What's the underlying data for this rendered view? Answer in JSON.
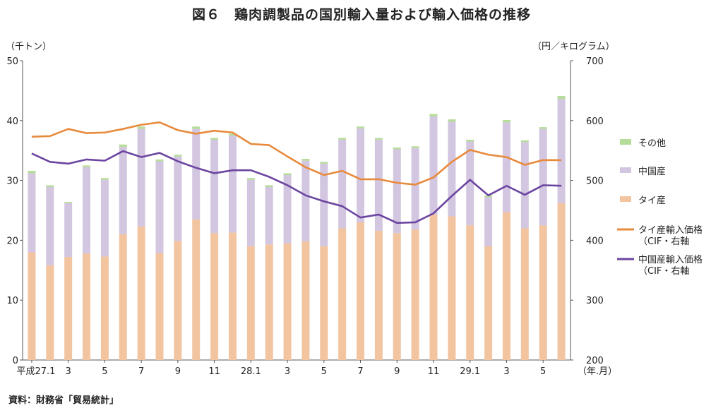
{
  "title": "図６　鶏肉調製品の国別輸入量および輸入価格の推移",
  "unit_left": "（千トン）",
  "unit_right": "（円／キログラム）",
  "source": "資料：財務省「貿易統計」",
  "colors": {
    "thai": "#f2c4a0",
    "china": "#d3c6e0",
    "other": "#b6dc9a",
    "thai_price": "#e88a3c",
    "china_price": "#6b45a0",
    "axis": "#555555"
  },
  "chart_data": {
    "type": "bar",
    "stacked": true,
    "categories": [
      "平成27.1",
      "2",
      "3",
      "4",
      "5",
      "6",
      "7",
      "8",
      "9",
      "10",
      "11",
      "12",
      "28.1",
      "2",
      "3",
      "4",
      "5",
      "6",
      "7",
      "8",
      "9",
      "10",
      "11",
      "12",
      "29.1",
      "2",
      "3",
      "4",
      "5",
      "6"
    ],
    "category_labels": [
      "平成27.1",
      "",
      "3",
      "",
      "5",
      "",
      "7",
      "",
      "9",
      "",
      "11",
      "",
      "28.1",
      "",
      "3",
      "",
      "5",
      "",
      "7",
      "",
      "9",
      "",
      "11",
      "",
      "29.1",
      "",
      "3",
      "",
      "5",
      ""
    ],
    "x_axis_unit": "（年.月）",
    "y_left": {
      "ylim": [
        0,
        50
      ],
      "ticks": [
        "0",
        "10",
        "20",
        "30",
        "40",
        "50"
      ]
    },
    "y_right": {
      "ylim": [
        200,
        700
      ],
      "ticks": [
        "200",
        "300",
        "400",
        "500",
        "600",
        "700"
      ]
    },
    "series": [
      {
        "name": "タイ産",
        "kind": "bar",
        "axis": "left",
        "values": [
          18.0,
          15.8,
          17.2,
          17.8,
          17.3,
          21.0,
          22.3,
          17.9,
          19.9,
          23.5,
          21.2,
          21.3,
          19.0,
          19.3,
          19.5,
          19.8,
          19.0,
          22.0,
          23.0,
          21.6,
          21.2,
          21.8,
          24.3,
          24.0,
          22.5,
          19.0,
          24.7,
          22.0,
          22.5,
          26.2
        ]
      },
      {
        "name": "中国産",
        "kind": "bar",
        "axis": "left",
        "values": [
          13.2,
          13.1,
          9.0,
          14.4,
          12.8,
          14.6,
          16.3,
          15.3,
          14.1,
          15.1,
          15.6,
          16.2,
          11.1,
          9.6,
          11.4,
          13.5,
          13.8,
          14.8,
          15.7,
          15.2,
          14.0,
          13.6,
          16.4,
          15.8,
          14.0,
          8.2,
          15.0,
          14.4,
          16.1,
          17.4
        ]
      },
      {
        "name": "その他",
        "kind": "bar",
        "axis": "left",
        "values": [
          0.4,
          0.3,
          0.2,
          0.3,
          0.3,
          0.4,
          0.4,
          0.3,
          0.3,
          0.4,
          0.3,
          0.3,
          0.3,
          0.3,
          0.3,
          0.3,
          0.3,
          0.3,
          0.3,
          0.3,
          0.3,
          0.3,
          0.4,
          0.4,
          0.3,
          0.3,
          0.4,
          0.3,
          0.3,
          0.5
        ]
      },
      {
        "name": "タイ産輸入価格（CIF・右軸）",
        "kind": "line",
        "axis": "right",
        "values": [
          573,
          574,
          586,
          579,
          580,
          586,
          593,
          597,
          584,
          578,
          583,
          580,
          561,
          559,
          540,
          522,
          509,
          516,
          502,
          502,
          496,
          493,
          505,
          531,
          551,
          543,
          539,
          526,
          534,
          534
        ]
      },
      {
        "name": "中国産輸入価格（CIF・右軸）",
        "kind": "line",
        "axis": "right",
        "values": [
          545,
          531,
          528,
          535,
          533,
          549,
          539,
          546,
          532,
          521,
          512,
          517,
          517,
          506,
          492,
          475,
          465,
          457,
          438,
          443,
          429,
          430,
          445,
          474,
          501,
          475,
          491,
          476,
          492,
          491
        ]
      }
    ],
    "legend": {
      "position": "right",
      "items": [
        {
          "label": "その他",
          "type": "swatch",
          "color_key": "other"
        },
        {
          "label": "中国産",
          "type": "swatch",
          "color_key": "china"
        },
        {
          "label": "タイ産",
          "type": "swatch",
          "color_key": "thai"
        },
        {
          "label": "タイ産輸入価格",
          "label2": "（CIF・右軸",
          "type": "line",
          "color_key": "thai_price"
        },
        {
          "label": "中国産輸入価格",
          "label2": "（CIF・右軸",
          "type": "line",
          "color_key": "china_price"
        }
      ]
    },
    "grid": false
  }
}
